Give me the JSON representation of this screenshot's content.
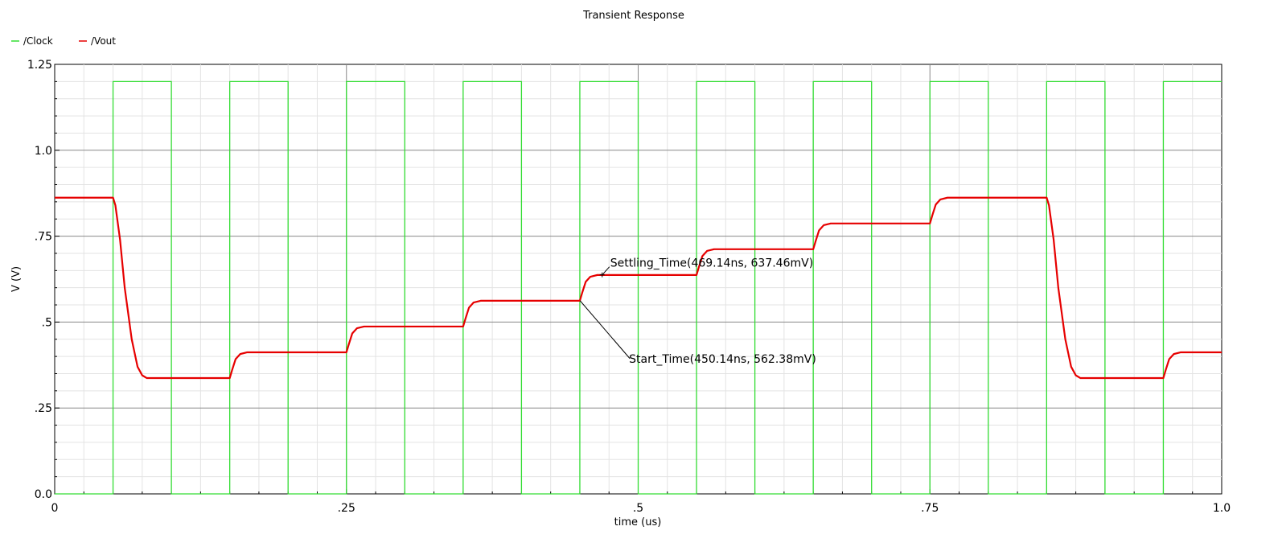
{
  "chart_data": {
    "type": "line",
    "title": "Transient Response",
    "xlabel": "time (us)",
    "ylabel": "V (V)",
    "xlim": [
      0,
      1.0
    ],
    "ylim": [
      0,
      1.25
    ],
    "x_ticks": [
      {
        "value": 0,
        "label": "0"
      },
      {
        "value": 0.25,
        "label": ".25"
      },
      {
        "value": 0.5,
        "label": ".5"
      },
      {
        "value": 0.75,
        "label": ".75"
      },
      {
        "value": 1.0,
        "label": "1.0"
      }
    ],
    "y_ticks": [
      {
        "value": 0,
        "label": "0.0"
      },
      {
        "value": 0.25,
        "label": ".25"
      },
      {
        "value": 0.5,
        "label": ".5"
      },
      {
        "value": 0.75,
        "label": ".75"
      },
      {
        "value": 1.0,
        "label": "1.0"
      },
      {
        "value": 1.25,
        "label": "1.25"
      }
    ],
    "grid": true,
    "legend_position": "top-left",
    "series": [
      {
        "name": "/Clock",
        "color": "#33dd33",
        "x": [
          0,
          0.05,
          0.05,
          0.1,
          0.1,
          0.15,
          0.15,
          0.2,
          0.2,
          0.25,
          0.25,
          0.3,
          0.3,
          0.35,
          0.35,
          0.4,
          0.4,
          0.45,
          0.45,
          0.5,
          0.5,
          0.55,
          0.55,
          0.6,
          0.6,
          0.65,
          0.65,
          0.7,
          0.7,
          0.75,
          0.75,
          0.8,
          0.8,
          0.85,
          0.85,
          0.9,
          0.9,
          0.95,
          0.95,
          1.0
        ],
        "y": [
          0,
          0,
          1.2,
          1.2,
          0,
          0,
          1.2,
          1.2,
          0,
          0,
          1.2,
          1.2,
          0,
          0,
          1.2,
          1.2,
          0,
          0,
          1.2,
          1.2,
          0,
          0,
          1.2,
          1.2,
          0,
          0,
          1.2,
          1.2,
          0,
          0,
          1.2,
          1.2,
          0,
          0,
          1.2,
          1.2,
          0,
          0,
          1.2,
          1.2
        ]
      },
      {
        "name": "/Vout",
        "color": "#e60000",
        "x": [
          0,
          0.05,
          0.052,
          0.056,
          0.06,
          0.066,
          0.071,
          0.075,
          0.079,
          0.15,
          0.152,
          0.155,
          0.159,
          0.165,
          0.25,
          0.252,
          0.255,
          0.259,
          0.265,
          0.35,
          0.352,
          0.355,
          0.359,
          0.365,
          0.45,
          0.452,
          0.455,
          0.459,
          0.465,
          0.55,
          0.552,
          0.555,
          0.559,
          0.565,
          0.65,
          0.652,
          0.655,
          0.659,
          0.665,
          0.75,
          0.752,
          0.755,
          0.759,
          0.765,
          0.85,
          0.852,
          0.856,
          0.86,
          0.866,
          0.871,
          0.875,
          0.879,
          0.95,
          0.952,
          0.955,
          0.959,
          0.965,
          1.0
        ],
        "y": [
          0.862,
          0.862,
          0.84,
          0.74,
          0.6,
          0.45,
          0.37,
          0.345,
          0.337,
          0.337,
          0.36,
          0.392,
          0.407,
          0.412,
          0.412,
          0.435,
          0.467,
          0.482,
          0.487,
          0.487,
          0.51,
          0.542,
          0.557,
          0.562,
          0.562,
          0.585,
          0.617,
          0.632,
          0.637,
          0.637,
          0.66,
          0.692,
          0.707,
          0.712,
          0.712,
          0.735,
          0.767,
          0.782,
          0.787,
          0.787,
          0.81,
          0.842,
          0.857,
          0.862,
          0.862,
          0.84,
          0.74,
          0.6,
          0.45,
          0.37,
          0.345,
          0.337,
          0.337,
          0.36,
          0.392,
          0.407,
          0.412,
          0.412
        ]
      }
    ],
    "annotations": [
      {
        "name": "settling-time-marker",
        "label": "Settling_Time(469.14ns, 637.46mV)",
        "x": 0.46914,
        "y": 0.63746
      },
      {
        "name": "start-time-marker",
        "label": "Start_Time(450.14ns, 562.38mV)",
        "x": 0.45014,
        "y": 0.56238
      }
    ]
  }
}
